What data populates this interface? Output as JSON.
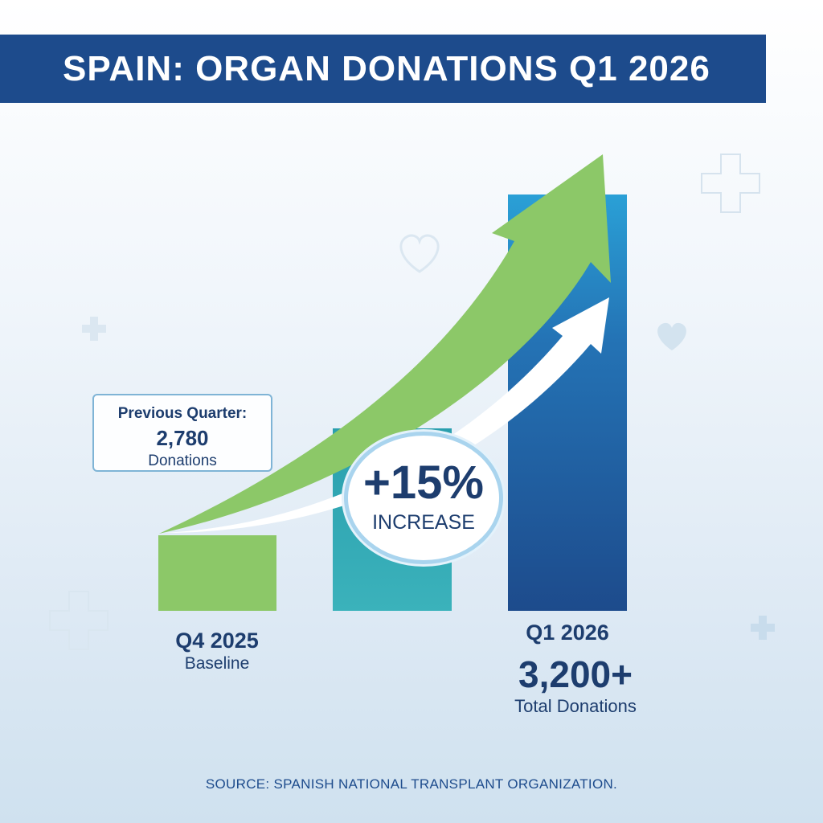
{
  "title": "SPAIN: ORGAN DONATIONS Q1 2026",
  "callout": {
    "heading": "Previous Quarter:",
    "value": "2,780",
    "unit": "Donations"
  },
  "badge": {
    "percent": "+15%",
    "label": "INCREASE"
  },
  "labels": {
    "q4_period": "Q4 2025",
    "q4_note": "Baseline",
    "q1_period": "Q1 2026",
    "q1_value": "3,200+",
    "q1_note": "Total Donations"
  },
  "source": "SOURCE: SPANISH NATIONAL TRANSPLANT ORGANIZATION.",
  "colors": {
    "banner": "#1d4b8c",
    "bar_q4": "#8cc868",
    "bar_middle": "#3bb2bb",
    "bar_q1": "#1d4b8c",
    "growth_arrow": "#8cc868",
    "text": "#1d3d6e"
  },
  "icons": [
    "medical-cross-icon",
    "heart-icon"
  ],
  "chart_data": {
    "type": "bar",
    "categories": [
      "Q4 2025",
      "",
      "Q1 2026"
    ],
    "values": [
      2780,
      2990,
      3200
    ],
    "annotations": [
      "+15% INCREASE",
      "Previous Quarter: 2,780 Donations"
    ],
    "xlabel": "",
    "ylabel": "",
    "grid": false
  }
}
